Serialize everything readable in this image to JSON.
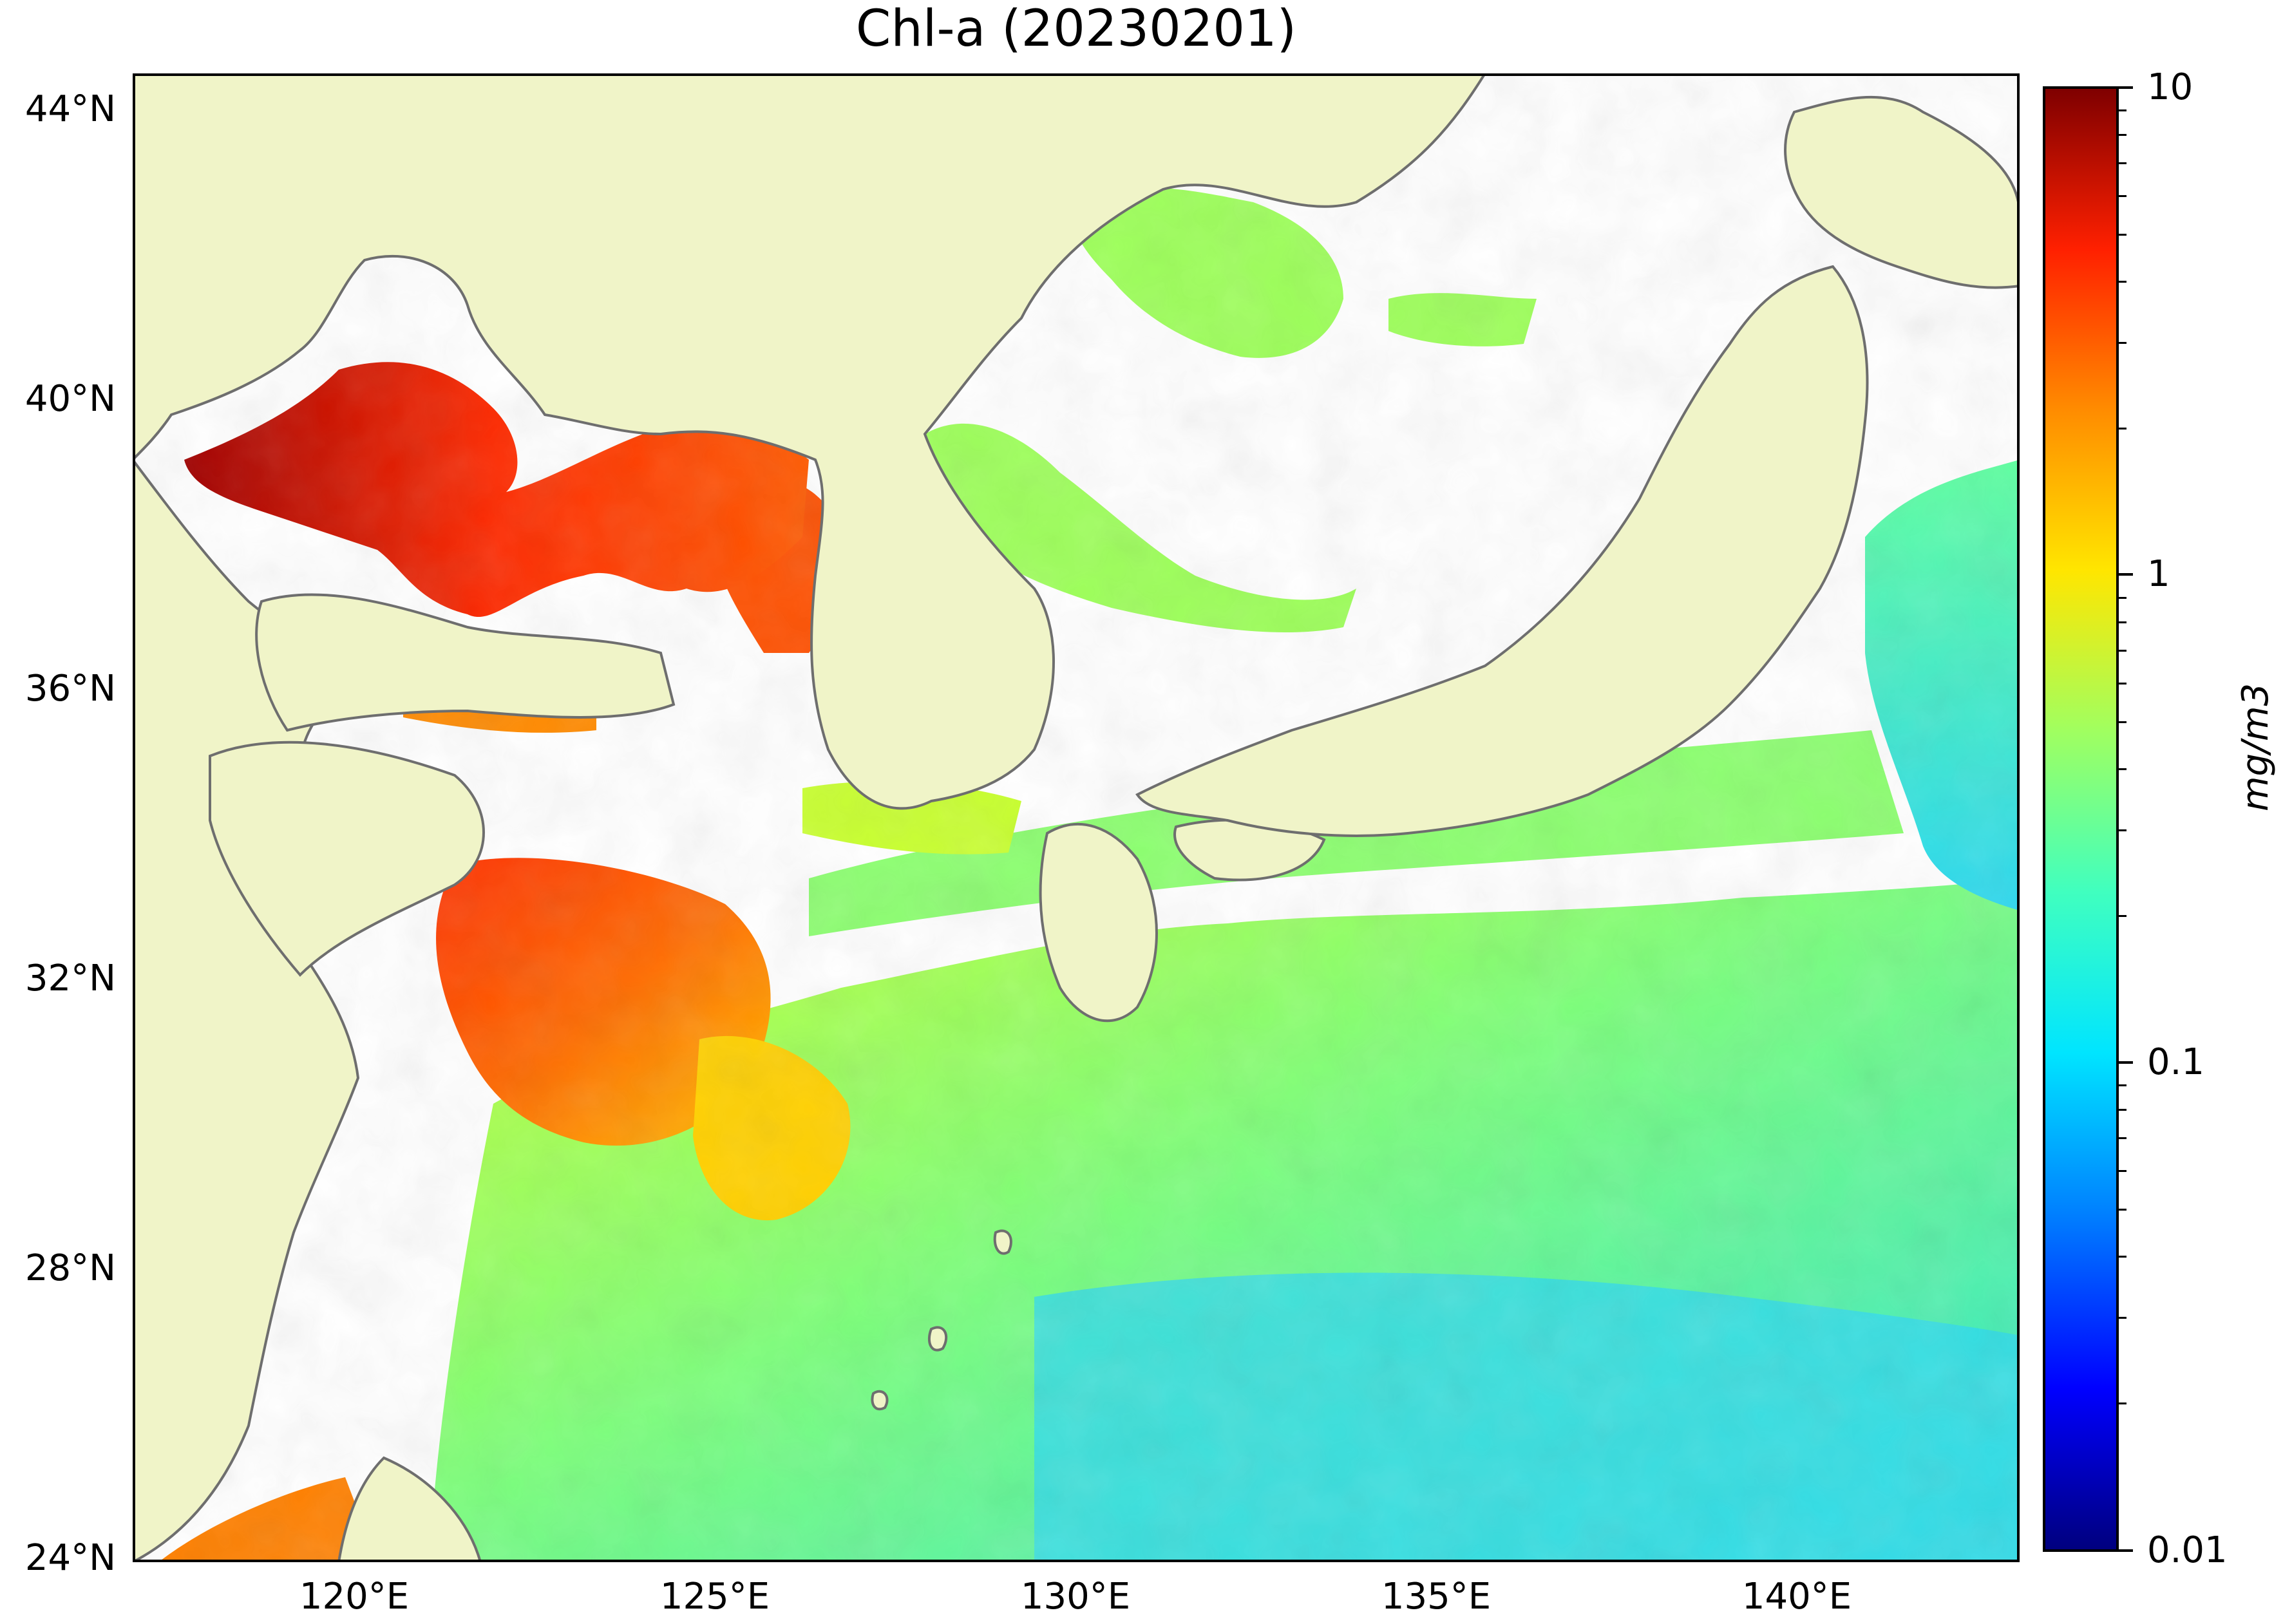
{
  "title": "Chl-a (20230201)",
  "map": {
    "latitude_labels": [
      "44°N",
      "40°N",
      "36°N",
      "32°N",
      "28°N",
      "24°N"
    ],
    "longitude_labels": [
      "120°E",
      "125°E",
      "130°E",
      "135°E",
      "140°E"
    ],
    "land_color": "#f0f4c8",
    "cloud_no_data_color": "#ffffff",
    "coastline_color": "#6e6e6e"
  },
  "colorbar": {
    "colormap": "jet",
    "scale": "log",
    "tick_labels": [
      "10",
      "1",
      "0.1",
      "0.01"
    ],
    "unit_label": "mg/m3"
  }
}
